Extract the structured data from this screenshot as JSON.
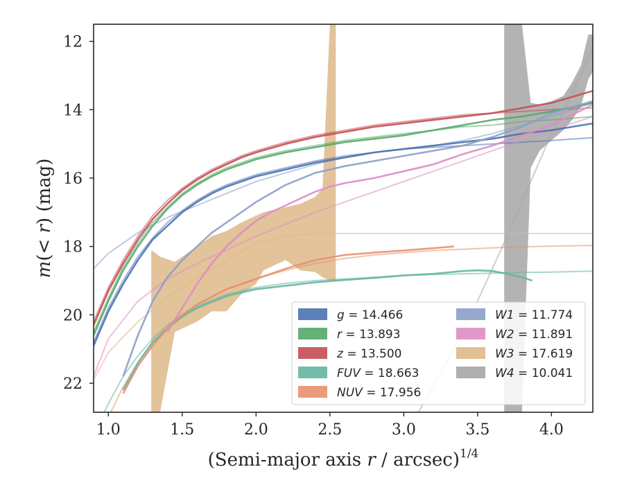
{
  "chart_data": {
    "type": "line",
    "title": "",
    "xlabel_main": "(Semi-major axis ",
    "xlabel_var": "r",
    "xlabel_unit": " / arcsec)",
    "xlabel_sup": "1/4",
    "ylabel_pre": "m",
    "ylabel_mid": "(< ",
    "ylabel_var": "r",
    "ylabel_post": ") (mag)",
    "xlim": [
      0.9,
      4.28
    ],
    "ylim": [
      22.85,
      11.5
    ],
    "xticks": [
      "1.0",
      "1.5",
      "2.0",
      "2.5",
      "3.0",
      "3.5",
      "4.0"
    ],
    "xtick_values": [
      1.0,
      1.5,
      2.0,
      2.5,
      3.0,
      3.5,
      4.0
    ],
    "yticks": [
      "12",
      "14",
      "16",
      "18",
      "20",
      "22"
    ],
    "ytick_values": [
      12,
      14,
      16,
      18,
      20,
      22
    ],
    "legend_position": "lower-right",
    "series": [
      {
        "name": "g",
        "value": "14.466",
        "color": "#4c72b0",
        "x": [
          0.9,
          1.0,
          1.1,
          1.2,
          1.3,
          1.4,
          1.5,
          1.6,
          1.7,
          1.8,
          1.9,
          2.0,
          2.2,
          2.4,
          2.6,
          2.8,
          3.0,
          3.2,
          3.4,
          3.6,
          3.8,
          4.0,
          4.28
        ],
        "y": [
          20.9,
          19.9,
          19.1,
          18.4,
          17.8,
          17.4,
          17.0,
          16.7,
          16.45,
          16.25,
          16.1,
          15.95,
          15.75,
          15.55,
          15.4,
          15.25,
          15.15,
          15.05,
          14.95,
          14.85,
          14.7,
          14.6,
          14.4
        ],
        "model_y": [
          20.8,
          19.8,
          19.0,
          18.3,
          17.75,
          17.3,
          16.95,
          16.65,
          16.4,
          16.2,
          16.05,
          15.9,
          15.7,
          15.5,
          15.35,
          15.25,
          15.15,
          15.1,
          15.05,
          15.0,
          14.95,
          14.9,
          14.82
        ]
      },
      {
        "name": "r",
        "value": "13.893",
        "color": "#55a868",
        "x": [
          0.9,
          1.0,
          1.1,
          1.2,
          1.3,
          1.4,
          1.5,
          1.6,
          1.7,
          1.8,
          1.9,
          2.0,
          2.2,
          2.4,
          2.6,
          2.8,
          3.0,
          3.2,
          3.4,
          3.6,
          3.8,
          4.0,
          4.28
        ],
        "y": [
          20.6,
          19.6,
          18.7,
          18.0,
          17.4,
          16.9,
          16.5,
          16.2,
          15.95,
          15.75,
          15.6,
          15.45,
          15.25,
          15.1,
          14.95,
          14.85,
          14.75,
          14.6,
          14.45,
          14.3,
          14.2,
          14.05,
          13.8
        ],
        "model_y": [
          20.5,
          19.5,
          18.6,
          17.9,
          17.3,
          16.85,
          16.45,
          16.15,
          15.9,
          15.7,
          15.55,
          15.4,
          15.2,
          15.05,
          14.9,
          14.8,
          14.7,
          14.6,
          14.5,
          14.45,
          14.35,
          14.3,
          14.2
        ]
      },
      {
        "name": "z",
        "value": "13.500",
        "color": "#c44e52",
        "x": [
          0.9,
          1.0,
          1.1,
          1.2,
          1.3,
          1.4,
          1.5,
          1.6,
          1.7,
          1.8,
          1.9,
          2.0,
          2.2,
          2.4,
          2.6,
          2.8,
          3.0,
          3.2,
          3.4,
          3.6,
          3.8,
          4.0,
          4.28
        ],
        "y": [
          20.3,
          19.3,
          18.5,
          17.8,
          17.2,
          16.75,
          16.35,
          16.05,
          15.8,
          15.6,
          15.4,
          15.25,
          15.0,
          14.8,
          14.65,
          14.5,
          14.4,
          14.3,
          14.2,
          14.1,
          13.95,
          13.8,
          13.45
        ],
        "model_y": [
          20.2,
          19.2,
          18.4,
          17.7,
          17.1,
          16.65,
          16.3,
          16.0,
          15.75,
          15.55,
          15.35,
          15.2,
          14.95,
          14.75,
          14.6,
          14.45,
          14.35,
          14.25,
          14.15,
          14.1,
          14.05,
          14.0,
          13.95
        ]
      },
      {
        "name": "FUV",
        "value": "18.663",
        "color": "#64b5a0",
        "x": [
          1.1,
          1.2,
          1.3,
          1.4,
          1.5,
          1.6,
          1.8,
          2.0,
          2.2,
          2.4,
          2.6,
          2.8,
          3.0,
          3.2,
          3.4,
          3.5,
          3.6,
          3.7,
          3.8,
          3.87
        ],
        "y": [
          22.2,
          21.4,
          20.8,
          20.4,
          20.05,
          19.8,
          19.45,
          19.25,
          19.15,
          19.05,
          18.98,
          18.92,
          18.85,
          18.8,
          18.72,
          18.7,
          18.72,
          18.8,
          18.9,
          19.0
        ],
        "model_x": [
          0.9,
          1.0,
          1.1,
          1.2,
          1.3,
          1.4,
          1.5,
          1.6,
          1.8,
          2.0,
          2.2,
          2.4,
          2.6,
          2.8,
          3.0,
          3.2,
          3.4,
          3.6,
          3.8,
          4.0,
          4.28
        ],
        "model_y": [
          23.5,
          22.6,
          21.8,
          21.2,
          20.7,
          20.3,
          20.0,
          19.75,
          19.4,
          19.2,
          19.08,
          19.0,
          18.95,
          18.9,
          18.85,
          18.82,
          18.8,
          18.78,
          18.76,
          18.75,
          18.72
        ]
      },
      {
        "name": "NUV",
        "value": "17.956",
        "color": "#e8906e",
        "x": [
          1.1,
          1.2,
          1.3,
          1.4,
          1.5,
          1.6,
          1.8,
          2.0,
          2.2,
          2.4,
          2.6,
          2.8,
          3.0,
          3.2,
          3.34
        ],
        "y": [
          22.3,
          21.5,
          20.9,
          20.4,
          20.0,
          19.7,
          19.25,
          18.95,
          18.65,
          18.4,
          18.25,
          18.18,
          18.12,
          18.05,
          18.0
        ],
        "model_x": [
          0.9,
          1.0,
          1.1,
          1.2,
          1.3,
          1.4,
          1.5,
          1.6,
          1.8,
          2.0,
          2.2,
          2.4,
          2.6,
          2.8,
          3.0,
          3.2,
          3.4,
          3.6,
          3.8,
          4.0,
          4.28
        ],
        "model_y": [
          24.0,
          23.0,
          22.1,
          21.4,
          20.8,
          20.35,
          20.0,
          19.7,
          19.25,
          18.95,
          18.7,
          18.5,
          18.35,
          18.25,
          18.18,
          18.12,
          18.08,
          18.04,
          18.01,
          17.99,
          17.97
        ]
      },
      {
        "name": "W1",
        "value": "11.774",
        "color": "#8c9ec8",
        "x": [
          1.1,
          1.2,
          1.3,
          1.4,
          1.5,
          1.6,
          1.7,
          1.8,
          1.9,
          2.0,
          2.1,
          2.2,
          2.4,
          2.6,
          2.8,
          3.0,
          3.2,
          3.4,
          3.6,
          3.8,
          4.0,
          4.28
        ],
        "y": [
          21.8,
          20.6,
          19.6,
          18.9,
          18.4,
          18.0,
          17.6,
          17.3,
          17.0,
          16.7,
          16.45,
          16.2,
          15.85,
          15.65,
          15.5,
          15.35,
          15.2,
          15.05,
          14.8,
          14.5,
          14.1,
          13.75
        ],
        "model_x": [
          0.9,
          1.0,
          1.2,
          1.4,
          1.6,
          1.8,
          2.0,
          2.2,
          2.4,
          2.6,
          2.8,
          3.0,
          3.2,
          3.4,
          3.6,
          3.8,
          4.0,
          4.28
        ],
        "model_y": [
          18.65,
          18.2,
          17.6,
          17.15,
          16.8,
          16.45,
          16.1,
          15.85,
          15.6,
          15.4,
          15.25,
          15.15,
          15.05,
          14.9,
          14.7,
          14.45,
          14.2,
          13.8
        ]
      },
      {
        "name": "W2",
        "value": "11.891",
        "color": "#dd8cc4",
        "x": [
          1.4,
          1.5,
          1.6,
          1.7,
          1.8,
          1.9,
          2.0,
          2.1,
          2.2,
          2.3,
          2.4,
          2.5,
          2.6,
          2.8,
          3.0,
          3.2,
          3.4,
          3.6,
          3.8,
          4.0,
          4.28
        ],
        "y": [
          20.5,
          19.8,
          19.1,
          18.5,
          18.0,
          17.6,
          17.25,
          17.0,
          16.8,
          16.6,
          16.4,
          16.25,
          16.15,
          16.0,
          15.8,
          15.6,
          15.3,
          15.05,
          14.75,
          14.45,
          13.85
        ],
        "model_x": [
          0.9,
          1.0,
          1.2,
          1.4,
          1.6,
          1.8,
          2.0,
          2.2,
          2.4,
          2.6,
          2.8,
          3.0,
          3.2,
          3.4,
          3.6,
          3.8,
          4.0,
          4.28
        ],
        "model_y": [
          21.8,
          20.7,
          19.6,
          18.95,
          18.5,
          18.1,
          17.7,
          17.35,
          17.0,
          16.7,
          16.4,
          16.1,
          15.8,
          15.5,
          15.2,
          14.9,
          14.6,
          14.2
        ]
      },
      {
        "name": "W3",
        "value": "17.619",
        "color": "#ddb988",
        "model_x": [
          0.9,
          1.0,
          1.2,
          1.4,
          1.6,
          1.8,
          2.0,
          2.2,
          2.4,
          2.6,
          2.8,
          3.0,
          3.2,
          3.4,
          3.6,
          3.8,
          4.0,
          4.28
        ],
        "model_y": [
          21.9,
          21.1,
          20.2,
          19.5,
          18.9,
          18.4,
          17.9,
          17.7,
          17.62,
          17.62,
          17.62,
          17.62,
          17.62,
          17.62,
          17.62,
          17.62,
          17.62,
          17.62
        ],
        "band_x": [
          1.29,
          1.29,
          1.35,
          1.45,
          1.6,
          1.7,
          1.8,
          1.9,
          2.0,
          2.05,
          2.1,
          2.2,
          2.3,
          2.4,
          2.45,
          2.5,
          2.54,
          2.54
        ],
        "band_upper": [
          18.05,
          18.1,
          18.3,
          18.45,
          18.0,
          17.7,
          17.55,
          17.3,
          17.1,
          17.0,
          16.95,
          16.85,
          16.75,
          16.55,
          16.3,
          11.5,
          11.5,
          11.5
        ],
        "band_lower": [
          22.85,
          22.85,
          22.85,
          20.5,
          20.2,
          19.9,
          19.9,
          19.4,
          19.1,
          18.7,
          18.6,
          18.4,
          18.7,
          18.75,
          18.9,
          19.0,
          19.0,
          19.0
        ]
      },
      {
        "name": "W4",
        "value": "10.041",
        "color": "#a6a6a6",
        "model_x": [
          3.1,
          3.3,
          3.5,
          3.7,
          3.9,
          4.0,
          4.1,
          4.28
        ],
        "model_y": [
          22.85,
          21.3,
          19.6,
          17.7,
          15.7,
          14.7,
          13.9,
          12.2
        ],
        "band_x": [
          3.68,
          3.72,
          3.76,
          3.8,
          3.86,
          3.92,
          4.0,
          4.08,
          4.14,
          4.2,
          4.25,
          4.28
        ],
        "band_upper": [
          11.5,
          11.5,
          11.5,
          11.5,
          13.8,
          13.85,
          13.75,
          13.6,
          13.2,
          12.7,
          11.8,
          11.8
        ],
        "band_lower": [
          22.85,
          22.85,
          22.85,
          22.85,
          15.7,
          15.2,
          14.9,
          14.6,
          14.3,
          13.9,
          13.1,
          12.9
        ]
      }
    ]
  }
}
